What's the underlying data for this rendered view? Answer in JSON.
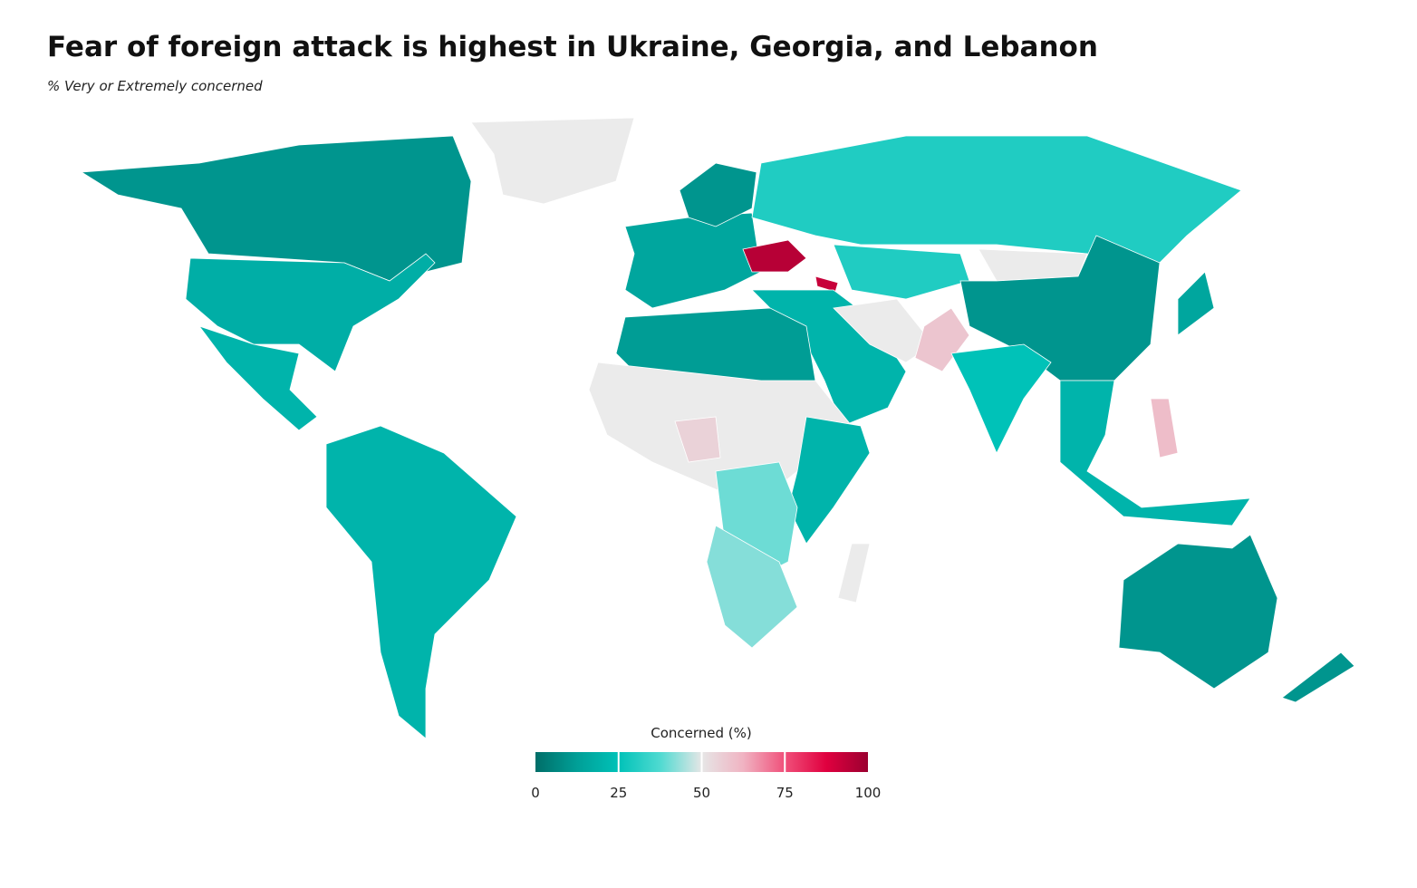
{
  "chart_data": {
    "type": "choropleth",
    "title": "Fear of foreign attack is highest in Ukraine, Georgia, and Lebanon",
    "subtitle": "% Very or Extremely concerned",
    "legend_title": "Concerned (%)",
    "range": [
      0,
      100
    ],
    "ticks": [
      0,
      25,
      50,
      75,
      100
    ],
    "colors": [
      "#006e68",
      "#009f97",
      "#00c2b8",
      "#4fdad1",
      "#e6e6e6",
      "#f0b3c2",
      "#f0507a",
      "#e0003f",
      "#9b0030"
    ],
    "values": [
      null,
      10,
      18,
      20,
      20,
      15,
      10,
      30,
      95,
      92,
      30,
      null,
      10,
      15,
      20,
      null,
      58,
      25,
      20,
      60,
      12,
      null,
      55,
      20,
      40,
      42,
      null,
      10,
      10
    ]
  }
}
